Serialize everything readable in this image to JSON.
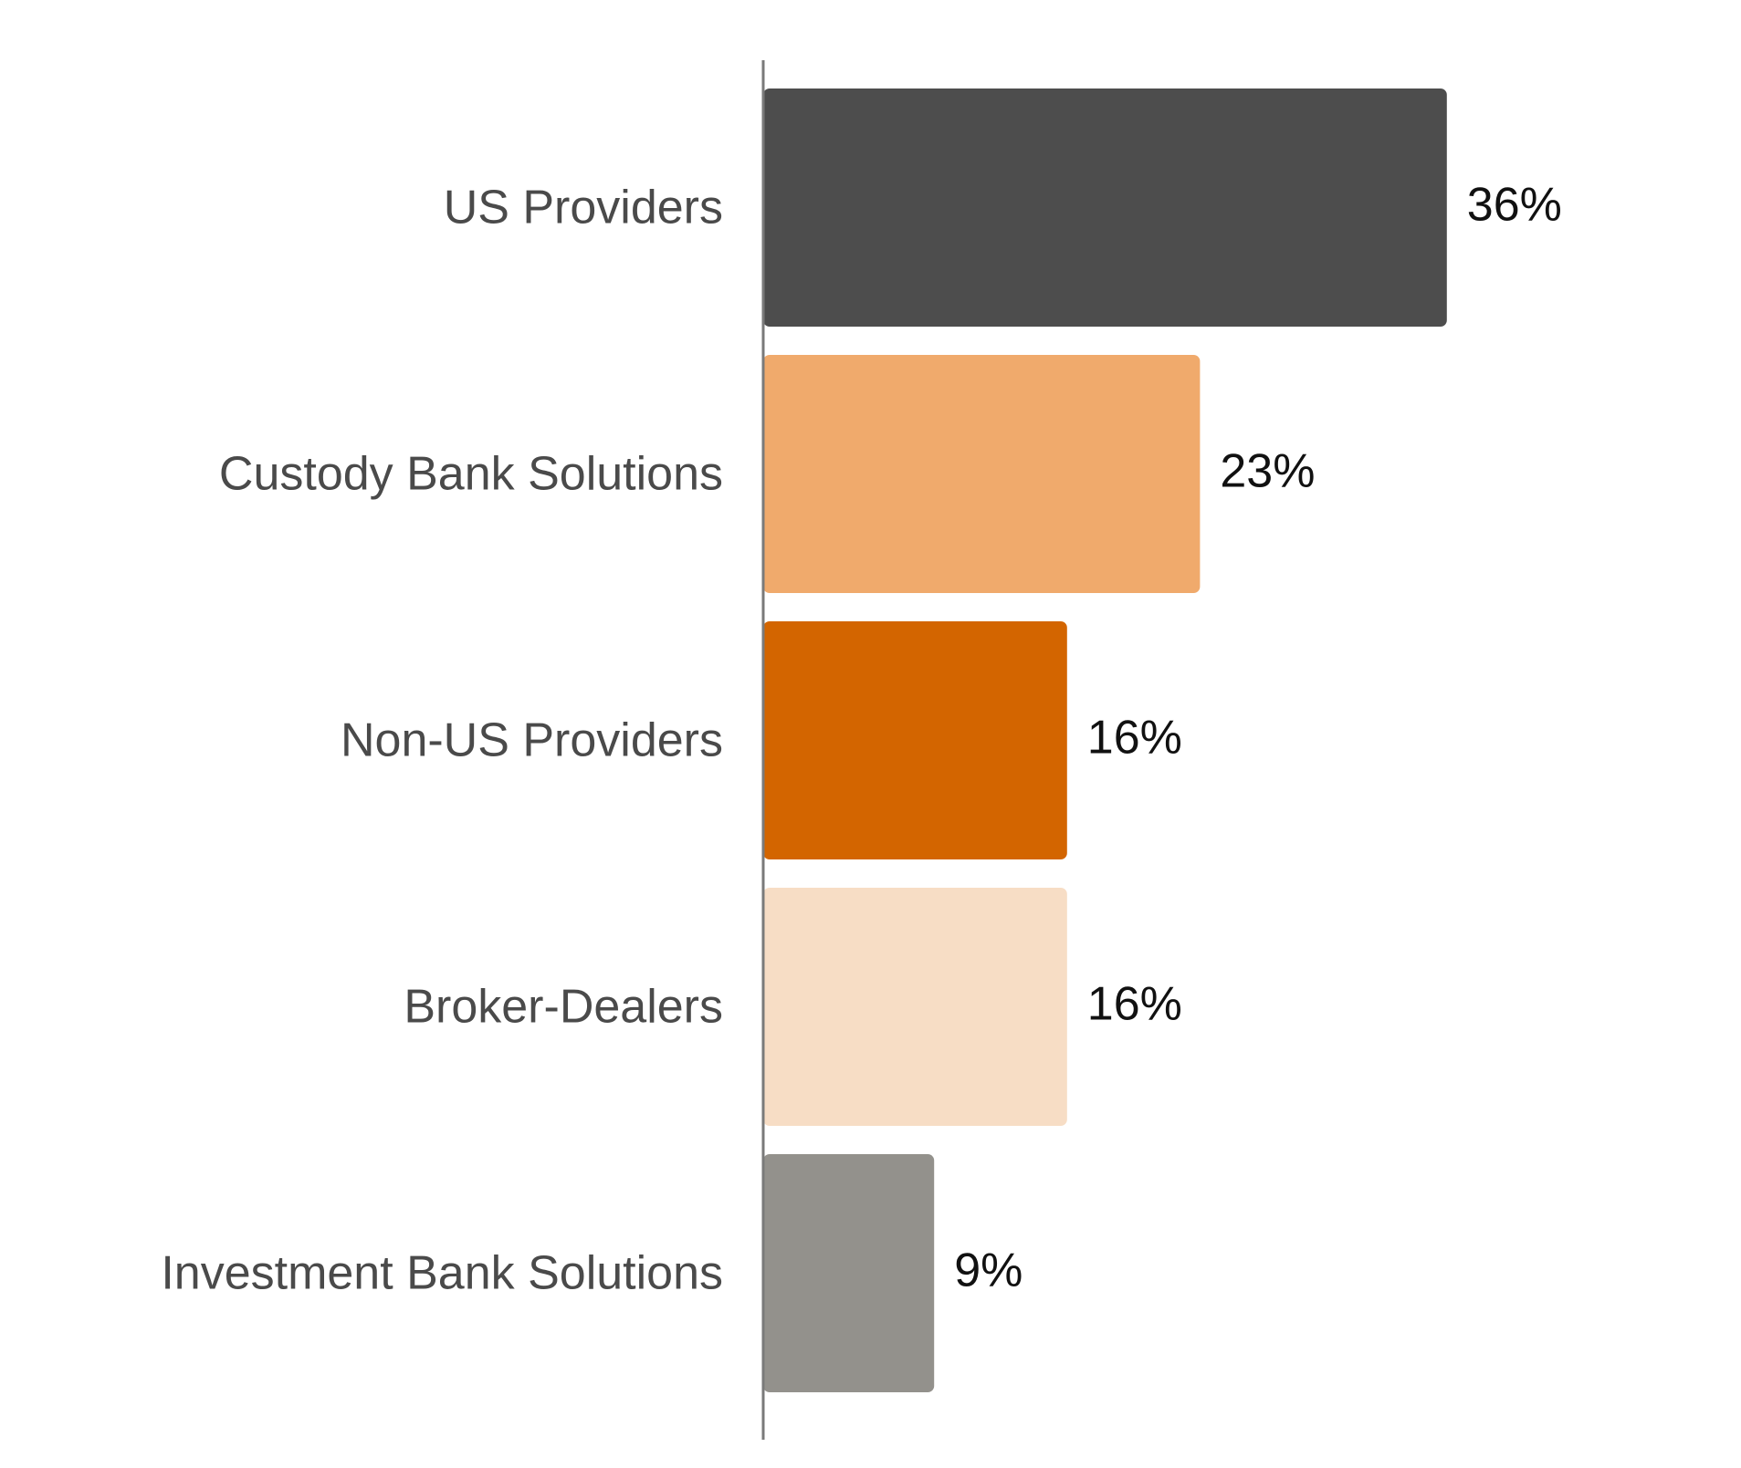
{
  "chart_data": {
    "type": "bar",
    "orientation": "horizontal",
    "categories": [
      "US Providers",
      "Custody Bank Solutions",
      "Non-US Providers",
      "Broker-Dealers",
      "Investment Bank Solutions"
    ],
    "values": [
      36,
      23,
      16,
      16,
      9
    ],
    "value_labels": [
      "36%",
      "23%",
      "16%",
      "16%",
      "9%"
    ],
    "unit": "%",
    "colors": [
      "#4d4d4d",
      "#f0aa6c",
      "#d36500",
      "#f7ddc5",
      "#93918c"
    ],
    "xlim": [
      0,
      40
    ],
    "grid": false,
    "legend": "none"
  }
}
